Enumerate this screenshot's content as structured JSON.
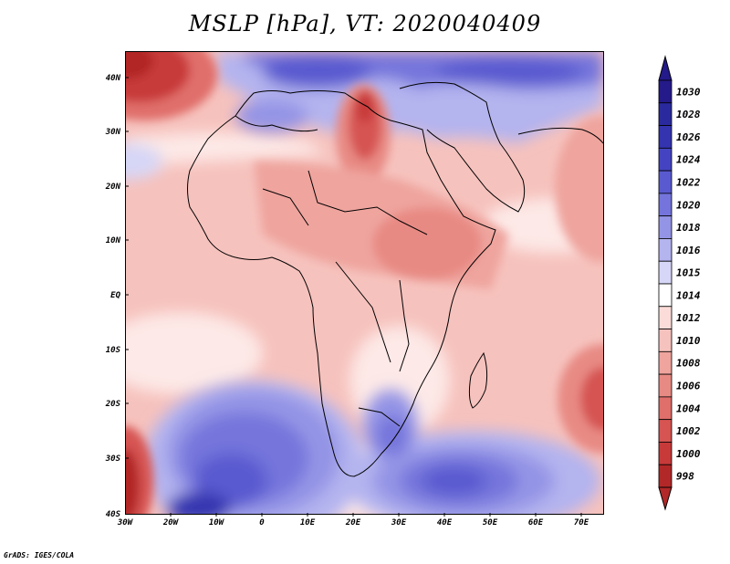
{
  "plot_title": "MSLP [hPa], VT: 2020040409",
  "axes": {
    "longitude_labels": [
      "30W",
      "20W",
      "10W",
      "0",
      "10E",
      "20E",
      "30E",
      "40E",
      "50E",
      "60E",
      "70E"
    ],
    "latitude_labels": [
      "40N",
      "30N",
      "20N",
      "10N",
      "EQ",
      "10S",
      "20S",
      "30S",
      "40S"
    ],
    "longitude_range_deg": [
      -30,
      75
    ],
    "latitude_range_deg": [
      -40,
      45
    ]
  },
  "colorbar": {
    "levels": [
      {
        "label": "1030",
        "color": "#241a8a"
      },
      {
        "label": "1028",
        "color": "#2a2a9e"
      },
      {
        "label": "1026",
        "color": "#3434b0"
      },
      {
        "label": "1024",
        "color": "#4444c2"
      },
      {
        "label": "1022",
        "color": "#5a5ad0"
      },
      {
        "label": "1020",
        "color": "#7474dc"
      },
      {
        "label": "1018",
        "color": "#9494e6"
      },
      {
        "label": "1016",
        "color": "#b4b4ef"
      },
      {
        "label": "1015",
        "color": "#d6d6f7"
      },
      {
        "label": "1014",
        "color": "#ffffff"
      },
      {
        "label": "1012",
        "color": "#fbdcd9"
      },
      {
        "label": "1010",
        "color": "#f6c2bd"
      },
      {
        "label": "1008",
        "color": "#efa49e"
      },
      {
        "label": "1006",
        "color": "#e88a84"
      },
      {
        "label": "1004",
        "color": "#e06e6a"
      },
      {
        "label": "1002",
        "color": "#d65452"
      },
      {
        "label": "1000",
        "color": "#c83a3a"
      },
      {
        "label": "998",
        "color": "#b22828"
      }
    ]
  },
  "footer_credit": "GrADS: IGES/COLA"
}
